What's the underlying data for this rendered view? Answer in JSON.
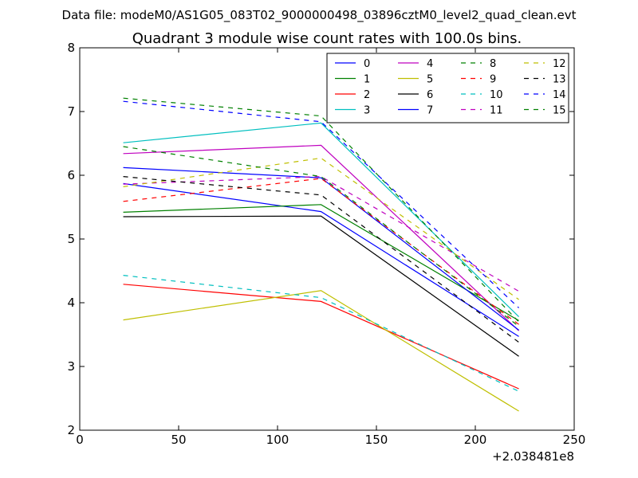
{
  "figure": {
    "suptitle": "Data file: modeM0/AS1G05_083T02_9000000498_03896cztM0_level2_quad_clean.evt"
  },
  "chart_data": {
    "type": "line",
    "title": "Quadrant 3 module wise count rates with 100.0s bins.",
    "xlabel": "",
    "ylabel": "",
    "x_offset_label": "+2.038481e8",
    "x": [
      22,
      122,
      222
    ],
    "xlim": [
      0,
      250
    ],
    "ylim": [
      2,
      8
    ],
    "xticks": [
      "0",
      "50",
      "100",
      "150",
      "200",
      "250"
    ],
    "yticks": [
      "2",
      "3",
      "4",
      "5",
      "6",
      "7",
      "8"
    ],
    "grid": false,
    "legend": {
      "placement": "top-right",
      "columns": 4
    },
    "series": [
      {
        "name": "0",
        "color": "#0000ff",
        "style": "solid",
        "values": [
          5.87,
          5.43,
          3.47
        ]
      },
      {
        "name": "1",
        "color": "#008000",
        "style": "solid",
        "values": [
          5.42,
          5.54,
          3.72
        ]
      },
      {
        "name": "2",
        "color": "#ff0000",
        "style": "solid",
        "values": [
          4.29,
          4.02,
          2.65
        ]
      },
      {
        "name": "3",
        "color": "#00bfbf",
        "style": "solid",
        "values": [
          6.51,
          6.82,
          3.78
        ]
      },
      {
        "name": "4",
        "color": "#bf00bf",
        "style": "solid",
        "values": [
          6.34,
          6.47,
          3.56
        ]
      },
      {
        "name": "5",
        "color": "#bfbf00",
        "style": "solid",
        "values": [
          3.73,
          4.19,
          2.3
        ]
      },
      {
        "name": "6",
        "color": "#000000",
        "style": "solid",
        "values": [
          5.35,
          5.36,
          3.16
        ]
      },
      {
        "name": "7",
        "color": "#0000ff",
        "style": "solid",
        "values": [
          6.12,
          5.96,
          3.57
        ]
      },
      {
        "name": "8",
        "color": "#008000",
        "style": "dashed",
        "values": [
          7.21,
          6.93,
          3.7
        ]
      },
      {
        "name": "9",
        "color": "#ff0000",
        "style": "dashed",
        "values": [
          5.59,
          5.95,
          3.66
        ]
      },
      {
        "name": "10",
        "color": "#00bfbf",
        "style": "dashed",
        "values": [
          4.43,
          4.08,
          2.61
        ]
      },
      {
        "name": "11",
        "color": "#bf00bf",
        "style": "dashed",
        "values": [
          5.86,
          5.98,
          4.18
        ]
      },
      {
        "name": "12",
        "color": "#bfbf00",
        "style": "dashed",
        "values": [
          5.82,
          6.27,
          4.05
        ]
      },
      {
        "name": "13",
        "color": "#000000",
        "style": "dashed",
        "values": [
          5.98,
          5.69,
          3.38
        ]
      },
      {
        "name": "14",
        "color": "#0000ff",
        "style": "dashed",
        "values": [
          7.16,
          6.84,
          3.92
        ]
      },
      {
        "name": "15",
        "color": "#008000",
        "style": "dashed",
        "values": [
          6.45,
          5.98,
          3.63
        ]
      }
    ]
  }
}
